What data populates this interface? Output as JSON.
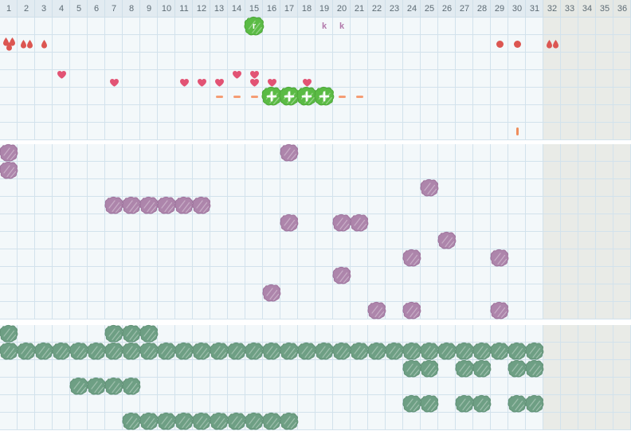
{
  "header": {
    "days": [
      "1",
      "2",
      "3",
      "4",
      "5",
      "6",
      "7",
      "8",
      "9",
      "10",
      "11",
      "12",
      "13",
      "14",
      "15",
      "16",
      "17",
      "18",
      "19",
      "20",
      "21",
      "22",
      "23",
      "24",
      "25",
      "26",
      "27",
      "28",
      "29",
      "30",
      "31",
      "32",
      "33",
      "34",
      "35",
      "36"
    ]
  },
  "shaded_from_day": 32,
  "colors": {
    "red": "#dc5651",
    "pink": "#e25374",
    "orange": "#f59d74",
    "deep_orange": "#ef8d5c",
    "bright_green": "#5bbb45",
    "bright_green_edge": "#4da839",
    "mauve_text": "#b278ab",
    "purple": "#ad85ab",
    "purple_edge": "#9f749d",
    "sage": "#6e9f84",
    "sage_edge": "#629277",
    "header_text": "#5d6b74"
  },
  "glyphs": {
    "k": "k",
    "r": "r",
    "plus": "+"
  },
  "sections": {
    "top": {
      "row_count": 7,
      "markers": [
        {
          "day": 15,
          "row": 1,
          "type": "green_scribble_letter"
        },
        {
          "day": 19,
          "row": 1,
          "type": "letter"
        },
        {
          "day": 20,
          "row": 1,
          "type": "letter"
        },
        {
          "day": 1,
          "row": 2,
          "type": "drops",
          "count": 3
        },
        {
          "day": 2,
          "row": 2,
          "type": "drops",
          "count": 2
        },
        {
          "day": 3,
          "row": 2,
          "type": "drops",
          "count": 1
        },
        {
          "day": 29,
          "row": 2,
          "type": "dot"
        },
        {
          "day": 30,
          "row": 2,
          "type": "dot"
        },
        {
          "day": 32,
          "row": 2,
          "type": "drops",
          "count": 2
        },
        {
          "day": 4,
          "row": 4,
          "type": "heart",
          "pos": "top"
        },
        {
          "day": 7,
          "row": 4,
          "type": "heart",
          "pos": "bottom"
        },
        {
          "day": 11,
          "row": 4,
          "type": "heart",
          "pos": "bottom"
        },
        {
          "day": 12,
          "row": 4,
          "type": "heart",
          "pos": "bottom"
        },
        {
          "day": 13,
          "row": 4,
          "type": "heart",
          "pos": "bottom"
        },
        {
          "day": 14,
          "row": 4,
          "type": "heart",
          "pos": "top"
        },
        {
          "day": 15,
          "row": 4,
          "type": "heart",
          "pos": "top"
        },
        {
          "day": 15,
          "row": 4,
          "type": "heart",
          "pos": "bottom"
        },
        {
          "day": 16,
          "row": 4,
          "type": "heart",
          "pos": "bottom"
        },
        {
          "day": 18,
          "row": 4,
          "type": "heart",
          "pos": "bottom"
        },
        {
          "day": 13,
          "row": 5,
          "type": "dash"
        },
        {
          "day": 14,
          "row": 5,
          "type": "dash"
        },
        {
          "day": 15,
          "row": 5,
          "type": "dash"
        },
        {
          "day": 16,
          "row": 5,
          "type": "green_scribble_plus"
        },
        {
          "day": 17,
          "row": 5,
          "type": "green_scribble_plus"
        },
        {
          "day": 18,
          "row": 5,
          "type": "green_scribble_plus"
        },
        {
          "day": 19,
          "row": 5,
          "type": "green_scribble_plus"
        },
        {
          "day": 20,
          "row": 5,
          "type": "dash"
        },
        {
          "day": 21,
          "row": 5,
          "type": "dash"
        },
        {
          "day": 30,
          "row": 7,
          "type": "bar"
        }
      ]
    },
    "middle": {
      "row_count": 10,
      "marker_type": "purple_scribble",
      "rows": [
        {
          "row": 1,
          "days": [
            1,
            17
          ]
        },
        {
          "row": 2,
          "days": [
            1
          ]
        },
        {
          "row": 3,
          "days": [
            25
          ]
        },
        {
          "row": 4,
          "days": [
            7,
            8,
            9,
            10,
            11,
            12
          ]
        },
        {
          "row": 5,
          "days": [
            17,
            20,
            21
          ]
        },
        {
          "row": 6,
          "days": [
            26
          ]
        },
        {
          "row": 7,
          "days": [
            24,
            29
          ]
        },
        {
          "row": 8,
          "days": [
            20
          ]
        },
        {
          "row": 9,
          "days": [
            16
          ]
        },
        {
          "row": 10,
          "days": [
            22,
            24,
            29
          ]
        }
      ]
    },
    "bottom": {
      "row_count": 6,
      "marker_type": "sage_scribble",
      "rows": [
        {
          "row": 1,
          "days": [
            1,
            7,
            8,
            9
          ]
        },
        {
          "row": 2,
          "days": [
            1,
            2,
            3,
            4,
            5,
            6,
            7,
            8,
            9,
            10,
            11,
            12,
            13,
            14,
            15,
            16,
            17,
            18,
            19,
            20,
            21,
            22,
            23,
            24,
            25,
            26,
            27,
            28,
            29,
            30,
            31
          ]
        },
        {
          "row": 3,
          "days": [
            24,
            25,
            27,
            28,
            30,
            31
          ]
        },
        {
          "row": 4,
          "days": [
            5,
            6,
            7,
            8
          ]
        },
        {
          "row": 5,
          "days": [
            24,
            25,
            27,
            28,
            30,
            31
          ]
        },
        {
          "row": 6,
          "days": [
            8,
            9,
            10,
            11,
            12,
            13,
            14,
            15,
            16,
            17
          ]
        }
      ]
    }
  }
}
